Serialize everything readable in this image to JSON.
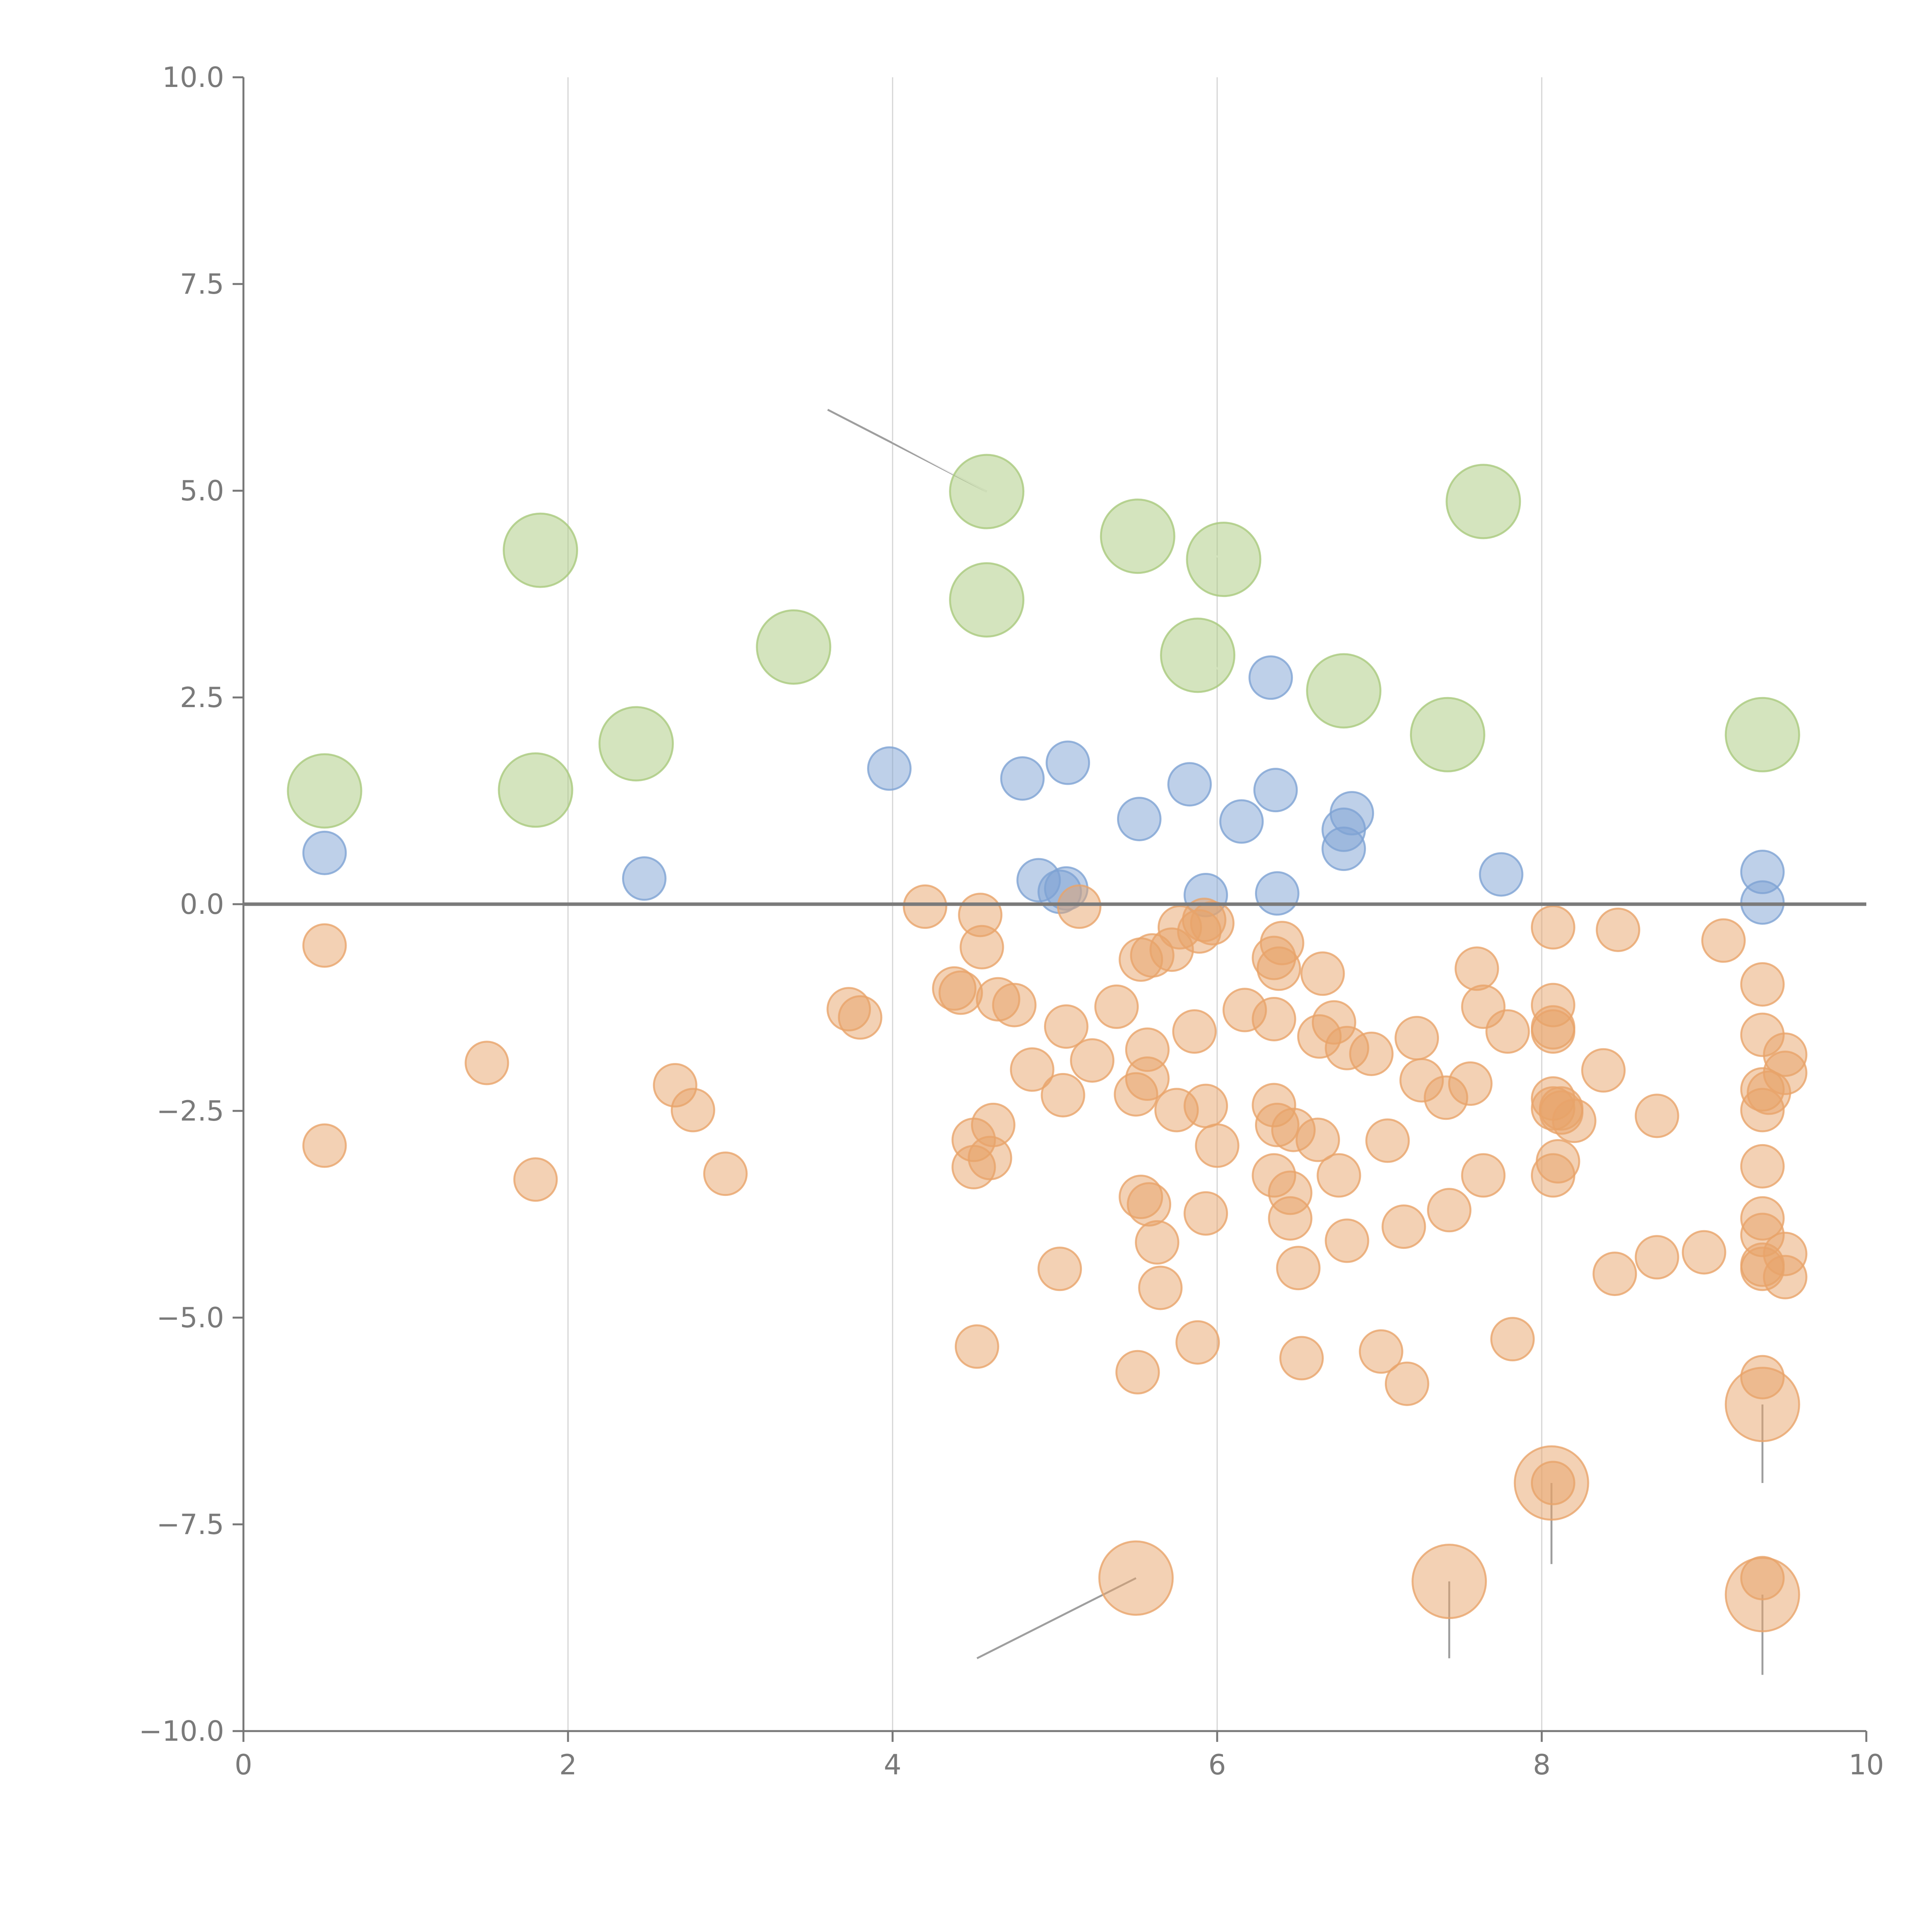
{
  "colors": {
    "blue": "#7ea2d3",
    "orange": "#e8a46a",
    "green": "#a9c97d",
    "axis": "#777777",
    "grid": "#d4d4d4"
  },
  "chart_data": {
    "type": "scatter",
    "title": "",
    "xlabel": "",
    "ylabel": "",
    "xlim": [
      0,
      10
    ],
    "ylim": [
      -10,
      10
    ],
    "grid": "vertical",
    "legend": "none",
    "x_ticks": [
      0,
      2,
      4,
      6,
      8,
      10
    ],
    "x_tick_labels": [
      "0",
      "2",
      "4",
      "6",
      "8",
      "10"
    ],
    "y_ticks": [
      -10,
      -7.5,
      -5,
      -2.5,
      0,
      2.5,
      5,
      7.5,
      10
    ],
    "y_tick_labels": [
      "−10.0",
      "−7.5",
      "−5.0",
      "−2.5",
      "0.0",
      "2.5",
      "5.0",
      "7.5",
      "10.0"
    ],
    "reference_line_y": 0,
    "series": [
      {
        "name": "blue",
        "color_key": "blue",
        "size": "small",
        "points": [
          [
            0.5,
            0.62
          ],
          [
            2.47,
            0.31
          ],
          [
            3.98,
            1.64
          ],
          [
            4.8,
            1.52
          ],
          [
            4.9,
            0.29
          ],
          [
            5.03,
            0.15
          ],
          [
            5.07,
            0.19
          ],
          [
            5.08,
            1.71
          ],
          [
            5.52,
            1.03
          ],
          [
            5.83,
            1.45
          ],
          [
            5.93,
            0.11
          ],
          [
            6.15,
            1.0
          ],
          [
            6.33,
            2.74
          ],
          [
            6.36,
            1.38
          ],
          [
            6.37,
            0.13
          ],
          [
            6.78,
            0.67
          ],
          [
            6.78,
            0.9
          ],
          [
            6.83,
            1.1
          ],
          [
            7.75,
            0.36
          ],
          [
            9.36,
            0.39
          ],
          [
            9.36,
            0.02
          ]
        ]
      },
      {
        "name": "orange",
        "color_key": "orange",
        "size": "small",
        "points": [
          [
            0.5,
            -0.5
          ],
          [
            0.5,
            -2.92
          ],
          [
            1.5,
            -1.92
          ],
          [
            1.8,
            -3.33
          ],
          [
            2.66,
            -2.19
          ],
          [
            2.77,
            -2.49
          ],
          [
            2.97,
            -3.26
          ],
          [
            3.73,
            -1.27
          ],
          [
            3.8,
            -1.37
          ],
          [
            4.2,
            -0.03
          ],
          [
            4.38,
            -1.02
          ],
          [
            4.42,
            -1.07
          ],
          [
            4.5,
            -2.85
          ],
          [
            4.5,
            -3.18
          ],
          [
            4.54,
            -0.13
          ],
          [
            4.55,
            -0.52
          ],
          [
            4.52,
            -5.35
          ],
          [
            4.6,
            -3.07
          ],
          [
            4.62,
            -2.67
          ],
          [
            4.65,
            -1.15
          ],
          [
            4.75,
            -1.22
          ],
          [
            4.86,
            -2.0
          ],
          [
            5.05,
            -2.31
          ],
          [
            5.07,
            -1.48
          ],
          [
            5.03,
            -4.41
          ],
          [
            5.15,
            -0.03
          ],
          [
            5.23,
            -1.89
          ],
          [
            5.38,
            -1.24
          ],
          [
            5.5,
            -2.3
          ],
          [
            5.51,
            -5.66
          ],
          [
            5.53,
            -0.67
          ],
          [
            5.53,
            -3.54
          ],
          [
            5.57,
            -2.11
          ],
          [
            5.57,
            -1.76
          ],
          [
            5.58,
            -3.63
          ],
          [
            5.6,
            -0.62
          ],
          [
            5.63,
            -4.09
          ],
          [
            5.65,
            -4.64
          ],
          [
            5.72,
            -0.55
          ],
          [
            5.77,
            -0.28
          ],
          [
            5.75,
            -2.49
          ],
          [
            5.86,
            -1.54
          ],
          [
            5.88,
            -5.3
          ],
          [
            5.89,
            -0.33
          ],
          [
            5.92,
            -0.19
          ],
          [
            5.93,
            -2.44
          ],
          [
            5.93,
            -3.74
          ],
          [
            5.97,
            -0.23
          ],
          [
            6.0,
            -2.92
          ],
          [
            6.17,
            -1.28
          ],
          [
            6.35,
            -0.65
          ],
          [
            6.35,
            -1.39
          ],
          [
            6.35,
            -2.43
          ],
          [
            6.35,
            -3.28
          ],
          [
            6.37,
            -2.67
          ],
          [
            6.38,
            -0.78
          ],
          [
            6.4,
            -0.47
          ],
          [
            6.45,
            -3.49
          ],
          [
            6.45,
            -3.8
          ],
          [
            6.47,
            -2.73
          ],
          [
            6.5,
            -4.4
          ],
          [
            6.52,
            -5.49
          ],
          [
            6.62,
            -2.85
          ],
          [
            6.65,
            -0.84
          ],
          [
            6.63,
            -1.6
          ],
          [
            6.72,
            -1.43
          ],
          [
            6.75,
            -3.28
          ],
          [
            6.8,
            -1.74
          ],
          [
            6.8,
            -4.07
          ],
          [
            6.95,
            -1.81
          ],
          [
            7.01,
            -5.41
          ],
          [
            7.05,
            -2.86
          ],
          [
            7.15,
            -3.9
          ],
          [
            7.17,
            -5.8
          ],
          [
            7.23,
            -1.62
          ],
          [
            7.26,
            -2.13
          ],
          [
            7.41,
            -2.34
          ],
          [
            7.43,
            -3.7
          ],
          [
            7.56,
            -2.17
          ],
          [
            7.6,
            -0.78
          ],
          [
            7.64,
            -1.24
          ],
          [
            7.64,
            -3.28
          ],
          [
            7.79,
            -1.54
          ],
          [
            7.82,
            -5.26
          ],
          [
            8.07,
            -0.28
          ],
          [
            8.07,
            -1.22
          ],
          [
            8.07,
            -1.49
          ],
          [
            8.07,
            -1.54
          ],
          [
            8.07,
            -2.35
          ],
          [
            8.07,
            -2.47
          ],
          [
            8.07,
            -3.28
          ],
          [
            8.07,
            -7.0
          ],
          [
            8.1,
            -3.11
          ],
          [
            8.12,
            -2.47
          ],
          [
            8.12,
            -2.52
          ],
          [
            8.2,
            -2.62
          ],
          [
            8.38,
            -2.01
          ],
          [
            8.45,
            -4.47
          ],
          [
            8.47,
            -0.31
          ],
          [
            8.71,
            -2.56
          ],
          [
            8.71,
            -4.27
          ],
          [
            9.0,
            -4.21
          ],
          [
            9.12,
            -0.44
          ],
          [
            9.36,
            -0.97
          ],
          [
            9.36,
            -1.58
          ],
          [
            9.36,
            -2.24
          ],
          [
            9.36,
            -2.49
          ],
          [
            9.36,
            -3.17
          ],
          [
            9.36,
            -3.8
          ],
          [
            9.36,
            -4.0
          ],
          [
            9.36,
            -4.36
          ],
          [
            9.36,
            -4.41
          ],
          [
            9.36,
            -5.72
          ],
          [
            9.36,
            -8.15
          ],
          [
            9.4,
            -2.28
          ],
          [
            9.5,
            -1.82
          ],
          [
            9.5,
            -2.04
          ],
          [
            9.5,
            -4.23
          ],
          [
            9.5,
            -4.51
          ]
        ]
      },
      {
        "name": "orange-large",
        "color_key": "orange",
        "size": "large",
        "points": [
          [
            5.5,
            -8.15
          ],
          [
            7.43,
            -8.19
          ],
          [
            8.06,
            -7.0
          ],
          [
            9.36,
            -6.05
          ],
          [
            9.36,
            -8.35
          ]
        ]
      },
      {
        "name": "green",
        "color_key": "green",
        "size": "large",
        "points": [
          [
            0.5,
            1.37
          ],
          [
            1.83,
            4.28
          ],
          [
            1.8,
            1.38
          ],
          [
            2.42,
            1.94
          ],
          [
            3.39,
            3.11
          ],
          [
            4.58,
            4.99
          ],
          [
            4.58,
            3.68
          ],
          [
            5.51,
            4.45
          ],
          [
            5.88,
            3.01
          ],
          [
            6.04,
            4.17
          ],
          [
            6.78,
            2.58
          ],
          [
            7.42,
            2.05
          ],
          [
            7.64,
            4.87
          ],
          [
            9.36,
            2.05
          ]
        ]
      }
    ],
    "connectors": [
      {
        "from": [
          4.58,
          4.99
        ],
        "to": [
          3.6,
          5.98
        ],
        "color": "grey"
      },
      {
        "from": [
          5.5,
          -8.15
        ],
        "to": [
          4.52,
          -9.12
        ],
        "color": "grey"
      },
      {
        "from": [
          7.43,
          -8.19
        ],
        "to": [
          7.43,
          -9.12
        ],
        "color": "grey"
      },
      {
        "from": [
          8.06,
          -7.0
        ],
        "to": [
          8.06,
          -7.98
        ],
        "color": "grey"
      },
      {
        "from": [
          9.36,
          -6.05
        ],
        "to": [
          9.36,
          -7.0
        ],
        "color": "grey"
      },
      {
        "from": [
          9.36,
          -8.35
        ],
        "to": [
          9.36,
          -9.32
        ],
        "color": "grey"
      },
      {
        "from": [
          0.5,
          1.37
        ],
        "to": [
          0.65,
          1.62
        ],
        "color": "white"
      },
      {
        "from": [
          1.83,
          4.28
        ],
        "to": [
          1.97,
          4.5
        ],
        "color": "white"
      },
      {
        "from": [
          1.8,
          1.38
        ],
        "to": [
          1.97,
          1.15
        ],
        "color": "white"
      },
      {
        "from": [
          2.42,
          1.94
        ],
        "to": [
          2.6,
          1.97
        ],
        "color": "white"
      },
      {
        "from": [
          3.39,
          3.11
        ],
        "to": [
          3.2,
          3.2
        ],
        "color": "white"
      },
      {
        "from": [
          4.58,
          3.68
        ],
        "to": [
          4.77,
          3.71
        ],
        "color": "white"
      },
      {
        "from": [
          5.51,
          4.45
        ],
        "to": [
          5.32,
          4.7
        ],
        "color": "white"
      },
      {
        "from": [
          6.04,
          4.17
        ],
        "to": [
          5.75,
          4.42
        ],
        "color": "white"
      },
      {
        "from": [
          5.88,
          3.01
        ],
        "to": [
          6.04,
          2.8
        ],
        "color": "white"
      },
      {
        "from": [
          6.78,
          2.58
        ],
        "to": [
          6.93,
          2.8
        ],
        "color": "white"
      },
      {
        "from": [
          7.42,
          2.05
        ],
        "to": [
          7.58,
          1.82
        ],
        "color": "white"
      },
      {
        "from": [
          7.64,
          4.87
        ],
        "to": [
          7.83,
          4.9
        ],
        "color": "white"
      },
      {
        "from": [
          9.36,
          2.05
        ],
        "to": [
          9.25,
          2.28
        ],
        "color": "white"
      },
      {
        "from": [
          4.58,
          4.99
        ],
        "to": [
          4.0,
          5.6
        ],
        "color": "white"
      },
      {
        "from": [
          2.47,
          0.31
        ],
        "to": [
          2.6,
          0.05
        ],
        "color": "white"
      }
    ]
  }
}
